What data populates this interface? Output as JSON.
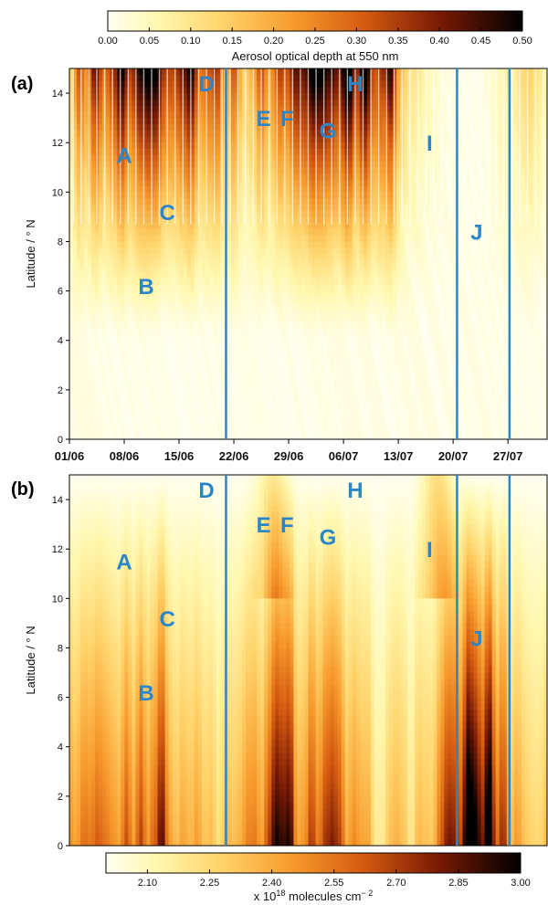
{
  "chart_data": [
    {
      "type": "heatmap",
      "panel_label": "(a)",
      "ylabel": "Latitude / ° N",
      "yticks": [
        0,
        2,
        4,
        6,
        8,
        10,
        12,
        14
      ],
      "ylim": [
        0,
        15
      ],
      "xlim_days": [
        0,
        61
      ],
      "x_ticks": [
        {
          "label": "01/06",
          "day": 0
        },
        {
          "label": "08/06",
          "day": 7
        },
        {
          "label": "15/06",
          "day": 14
        },
        {
          "label": "22/06",
          "day": 21
        },
        {
          "label": "29/06",
          "day": 28
        },
        {
          "label": "06/07",
          "day": 35
        },
        {
          "label": "13/07",
          "day": 42
        },
        {
          "label": "20/07",
          "day": 49
        },
        {
          "label": "27/07",
          "day": 56
        }
      ],
      "colorbar": {
        "label": "Aerosol optical depth at 550 nm",
        "ticks": [
          "0.00",
          "0.05",
          "0.10",
          "0.15",
          "0.20",
          "0.25",
          "0.30",
          "0.35",
          "0.40",
          "0.45",
          "0.50"
        ],
        "range": [
          0.0,
          0.5
        ]
      },
      "vertical_lines_day": [
        20.0,
        49.5,
        56.2
      ],
      "event_labels": [
        {
          "text": "A",
          "day": 7.0,
          "lat": 11.5
        },
        {
          "text": "B",
          "day": 9.8,
          "lat": 6.2
        },
        {
          "text": "C",
          "day": 12.5,
          "lat": 9.2
        },
        {
          "text": "D",
          "day": 17.5,
          "lat": 14.4
        },
        {
          "text": "E",
          "day": 24.8,
          "lat": 13.0
        },
        {
          "text": "F",
          "day": 27.8,
          "lat": 13.0
        },
        {
          "text": "G",
          "day": 33.0,
          "lat": 12.5
        },
        {
          "text": "H",
          "day": 36.5,
          "lat": 14.4
        },
        {
          "text": "I",
          "day": 46.0,
          "lat": 12.0
        },
        {
          "text": "J",
          "day": 52.0,
          "lat": 8.4
        }
      ]
    },
    {
      "type": "heatmap",
      "panel_label": "(b)",
      "ylabel": "Latitude / ° N",
      "yticks": [
        0,
        2,
        4,
        6,
        8,
        10,
        12,
        14
      ],
      "ylim": [
        0,
        15
      ],
      "xlim_days": [
        0,
        61
      ],
      "colorbar": {
        "label": "x 10",
        "label_sup": "18",
        "label_rest": " molecules cm",
        "label_sup2": "− 2",
        "ticks": [
          "2.10",
          "2.25",
          "2.40",
          "2.55",
          "2.70",
          "2.85",
          "3.00"
        ],
        "range": [
          2.0,
          3.0
        ]
      },
      "vertical_lines_day": [
        20.0,
        49.5,
        56.2
      ],
      "event_labels": [
        {
          "text": "A",
          "day": 7.0,
          "lat": 11.5
        },
        {
          "text": "B",
          "day": 9.8,
          "lat": 6.2
        },
        {
          "text": "C",
          "day": 12.5,
          "lat": 9.2
        },
        {
          "text": "D",
          "day": 17.5,
          "lat": 14.4
        },
        {
          "text": "E",
          "day": 24.8,
          "lat": 13.0
        },
        {
          "text": "F",
          "day": 27.8,
          "lat": 13.0
        },
        {
          "text": "G",
          "day": 33.0,
          "lat": 12.5
        },
        {
          "text": "H",
          "day": 36.5,
          "lat": 14.4
        },
        {
          "text": "I",
          "day": 46.0,
          "lat": 12.0
        },
        {
          "text": "J",
          "day": 52.0,
          "lat": 8.4
        }
      ]
    }
  ],
  "colors": {
    "line": "#2a86c8",
    "label": "#2a86c8"
  }
}
